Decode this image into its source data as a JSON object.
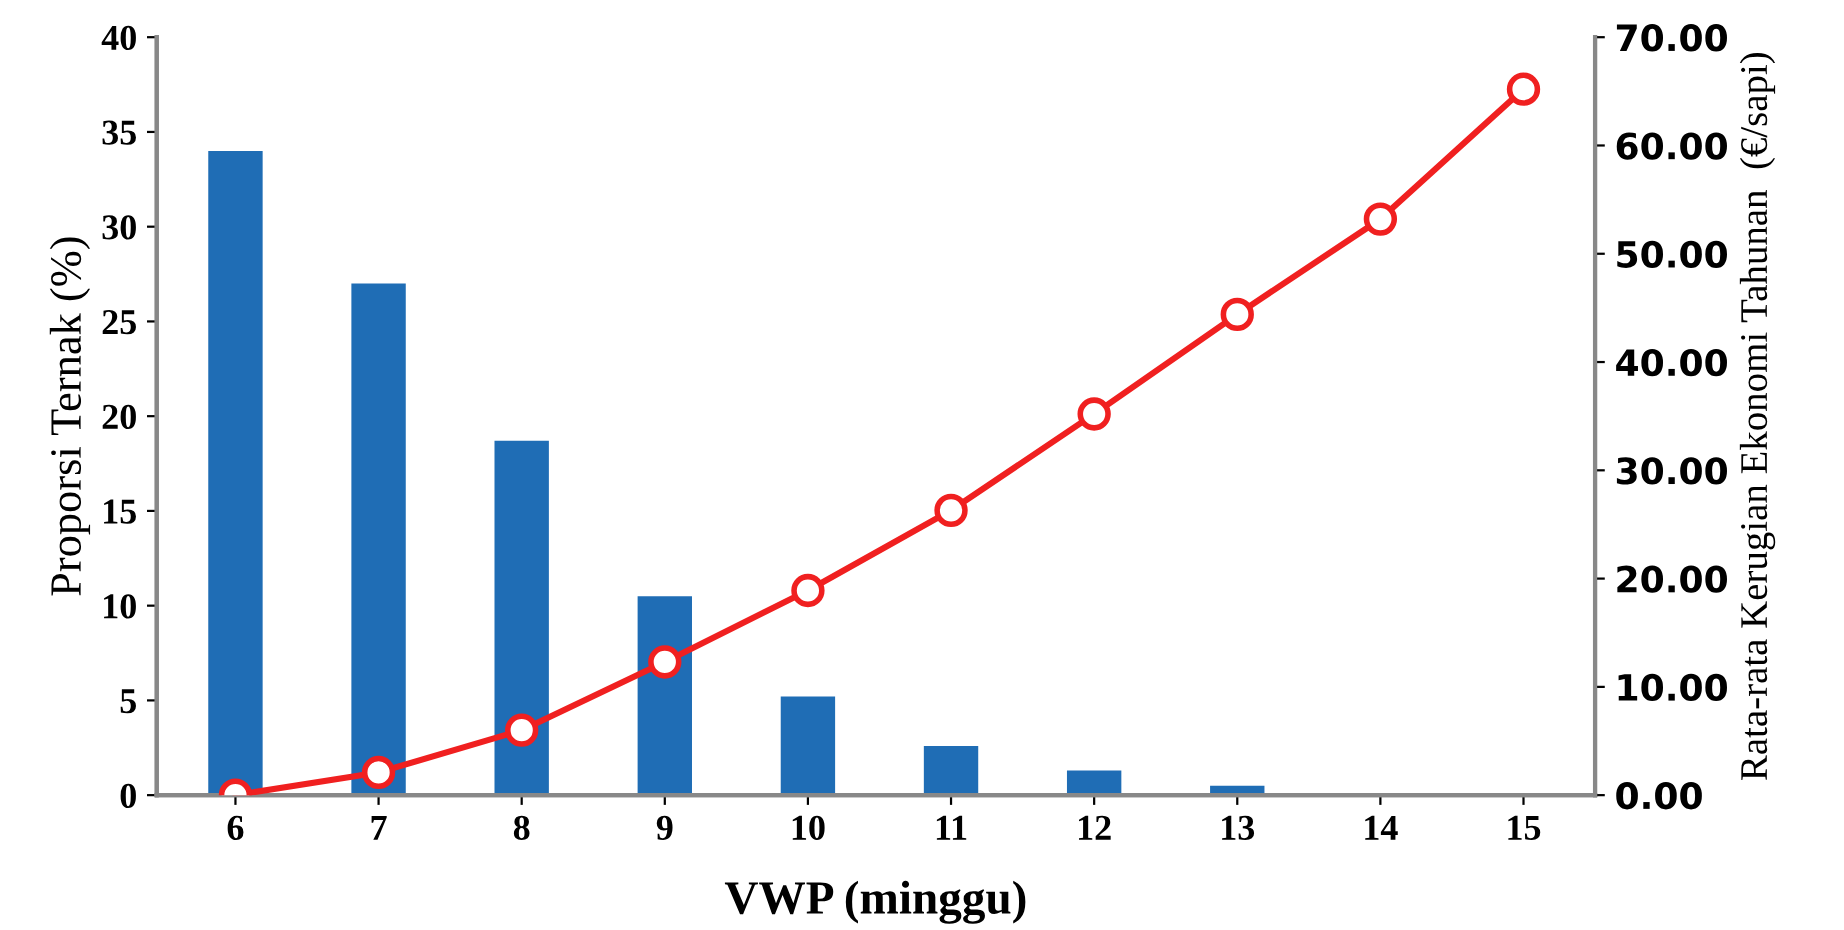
{
  "chart_data": {
    "type": "bar",
    "xlabel": "VWP (minggu)",
    "ylabel": "Proporsi Ternak (%)",
    "y2label": "Rata-rata Kerugian Ekonomi Tahunan  (€/sapi)",
    "categories": [
      "6",
      "7",
      "8",
      "9",
      "10",
      "11",
      "12",
      "13",
      "14",
      "15"
    ],
    "series": [
      {
        "color": "#1f6db5",
        "values": [
          34,
          27,
          18.7,
          10.5,
          5.2,
          2.6,
          1.3,
          0.5,
          0,
          0
        ]
      },
      {
        "type": "line",
        "axis": "y2",
        "color": "#f02020",
        "marker": "circle",
        "line_style": "solid",
        "values": [
          0,
          2.1,
          6.0,
          12.3,
          18.9,
          26.3,
          35.2,
          44.4,
          53.2,
          65.2
        ]
      }
    ],
    "ylim": [
      0,
      40
    ],
    "yticks": [
      0,
      5,
      10,
      15,
      20,
      25,
      30,
      35,
      40
    ],
    "y2lim": [
      0,
      70
    ],
    "y2ticks": [
      {
        "value": 0,
        "label": "0.00"
      },
      {
        "value": 10,
        "label": "10.00"
      },
      {
        "value": 20,
        "label": "20.00"
      },
      {
        "value": 30,
        "label": "30.00"
      },
      {
        "value": 40,
        "label": "40.00"
      },
      {
        "value": 50,
        "label": "50.00"
      },
      {
        "value": 60,
        "label": "60.00"
      },
      {
        "value": 70,
        "label": "70.00"
      }
    ],
    "grid": false,
    "legend": false
  }
}
